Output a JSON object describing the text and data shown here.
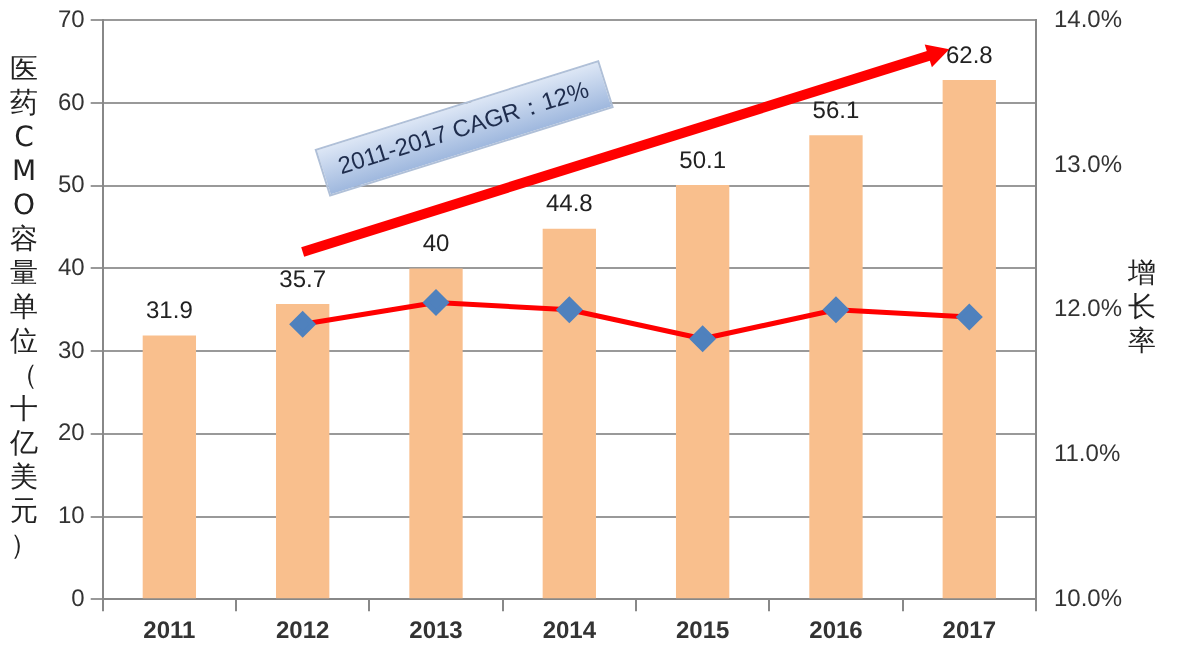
{
  "chart_data": {
    "type": "bar",
    "categories": [
      "2011",
      "2012",
      "2013",
      "2014",
      "2015",
      "2016",
      "2017"
    ],
    "series": [
      {
        "color": "#f9bf8d",
        "values": [
          31.9,
          35.7,
          40,
          44.8,
          50.1,
          56.1,
          62.8
        ],
        "value_labels": [
          "31.9",
          "35.7",
          "40",
          "44.8",
          "50.1",
          "56.1",
          "62.8"
        ]
      },
      {
        "type": "line",
        "axis": "y2",
        "color": "#ff0000",
        "values": [
          null,
          11.9,
          12.05,
          12.0,
          11.8,
          12.0,
          11.95
        ]
      }
    ],
    "ylabel": "医药CMO容量单位（十亿美元）",
    "y2label": "增长率",
    "ylim": [
      0,
      70
    ],
    "yticks": [
      0,
      10,
      20,
      30,
      40,
      50,
      60,
      70
    ],
    "y2lim": [
      10,
      14
    ],
    "y2ticks": [
      {
        "value": 10,
        "label": "10.0%"
      },
      {
        "value": 11,
        "label": "11.0%"
      },
      {
        "value": 12,
        "label": "12.0%"
      },
      {
        "value": 13,
        "label": "13.0%"
      },
      {
        "value": 14,
        "label": "14.0%"
      }
    ],
    "grid": "y",
    "legend": false,
    "marker": "diamond",
    "line_style": "solid",
    "annotations": [
      "2011-2017 CAGR：12%"
    ]
  }
}
